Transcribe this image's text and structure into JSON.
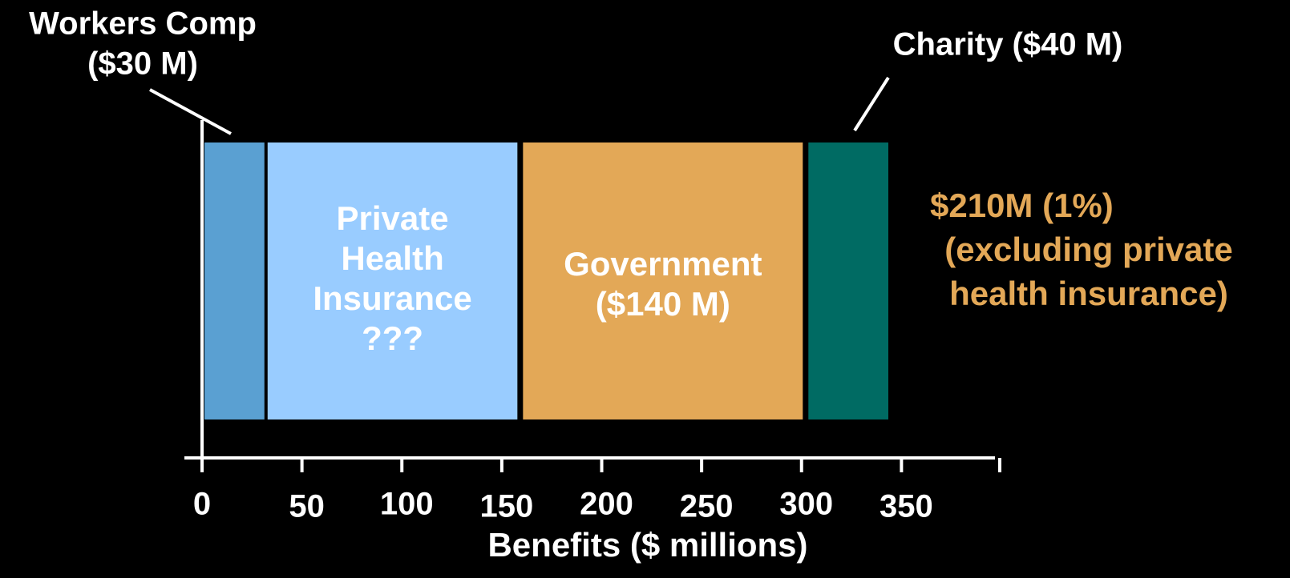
{
  "chart_data": {
    "type": "segmented_bar",
    "segments": [
      {
        "label": [
          "Workers Comp",
          "($30 M)"
        ],
        "value": 30,
        "color": "#5aa0d2",
        "label_position": "above"
      },
      {
        "label": [
          "Private",
          "Health",
          "Insurance",
          "???"
        ],
        "value": 125,
        "color": "#99ccff",
        "label_position": "inside"
      },
      {
        "label": [
          "Government",
          "($140 M)"
        ],
        "value": 140,
        "color": "#e3a857",
        "label_position": "inside"
      },
      {
        "label": [
          "Charity ($40 M)"
        ],
        "value": 40,
        "color": "#006b63",
        "label_position": "above"
      }
    ],
    "annotation": {
      "lines": [
        "$210M (1%)",
        "(excluding private",
        "health insurance)"
      ],
      "color": "#e3a857"
    },
    "xlabel": "Benefits ($ millions)",
    "xlim": [
      0,
      400
    ],
    "xticks": [
      0,
      50,
      100,
      150,
      200,
      250,
      300,
      350
    ]
  }
}
